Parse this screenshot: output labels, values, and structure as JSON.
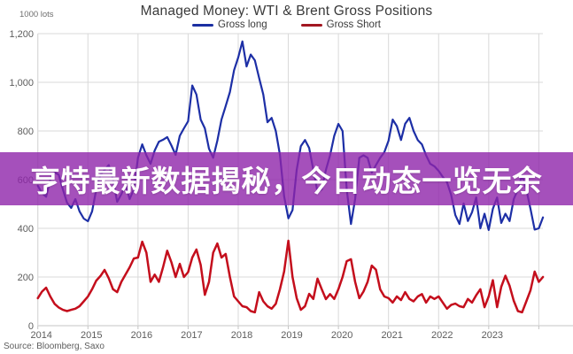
{
  "title": "Managed Money: WTI & Brent Gross Positions",
  "unit_label": "1000 lots",
  "source": "Source: Bloomberg, Saxo",
  "banner": {
    "text": "亨特最新数据揭秘，今日动态一览无余",
    "bg_color": "rgba(142,36,170,0.8)",
    "text_color": "#ffffff"
  },
  "legend": {
    "items": [
      {
        "label": "Gross long",
        "color": "#1b2fa2"
      },
      {
        "label": "Gross Short",
        "color": "#a21721"
      }
    ]
  },
  "colors": {
    "gross_long_line": "#1d2fa6",
    "gross_short_line": "#c40e1c",
    "gridline": "#d9d9d9",
    "axis": "#c4c4c4",
    "tick_label": "#5c5c5c"
  },
  "chart_data": {
    "type": "line",
    "title": "Managed Money: WTI & Brent Gross Positions",
    "unit": "1000 lots",
    "x_start_year": 2014,
    "points_per_year": 12,
    "x_tick_labels": [
      "2014",
      "2015",
      "2016",
      "2017",
      "2018",
      "2019",
      "2020",
      "2021",
      "2022",
      "2023"
    ],
    "x_gridline_years": [
      2014,
      2015,
      2016,
      2017,
      2018,
      2019,
      2020,
      2021,
      2022,
      2023,
      2024
    ],
    "y_ticks": [
      0,
      200,
      400,
      600,
      800,
      1000,
      1200
    ],
    "y_tick_labels": [
      "0",
      "200",
      "400",
      "600",
      "800",
      "1,000",
      "1,200"
    ],
    "ylim": [
      0,
      1200
    ],
    "grid": true,
    "legend_position": "top",
    "series": [
      {
        "name": "Gross long",
        "color": "#1d2fa6",
        "values": [
          575,
          545,
          530,
          600,
          630,
          620,
          560,
          505,
          484,
          520,
          470,
          440,
          429,
          470,
          560,
          620,
          640,
          660,
          600,
          509,
          540,
          580,
          520,
          560,
          690,
          745,
          700,
          665,
          720,
          756,
          764,
          775,
          740,
          702,
          780,
          811,
          840,
          987,
          950,
          847,
          811,
          727,
          690,
          760,
          847,
          902,
          960,
          1050,
          1102,
          1168,
          1065,
          1114,
          1090,
          1018,
          950,
          836,
          854,
          800,
          702,
          532,
          441,
          475,
          640,
          738,
          763,
          730,
          640,
          550,
          560,
          640,
          700,
          780,
          829,
          800,
          560,
          418,
          520,
          690,
          700,
          690,
          629,
          660,
          690,
          713,
          760,
          847,
          820,
          763,
          830,
          854,
          800,
          763,
          745,
          700,
          665,
          655,
          636,
          611,
          590,
          538,
          455,
          418,
          502,
          430,
          466,
          527,
          400,
          460,
          393,
          480,
          527,
          422,
          460,
          430,
          520,
          560,
          618,
          560,
          480,
          395,
          400,
          445
        ]
      },
      {
        "name": "Gross Short",
        "color": "#c40e1c",
        "values": [
          113,
          140,
          156,
          120,
          90,
          75,
          65,
          60,
          65,
          70,
          80,
          100,
          120,
          150,
          185,
          204,
          229,
          195,
          150,
          138,
          180,
          210,
          240,
          276,
          280,
          345,
          300,
          180,
          210,
          180,
          240,
          308,
          260,
          200,
          254,
          200,
          220,
          280,
          313,
          250,
          127,
          180,
          300,
          338,
          280,
          295,
          200,
          120,
          100,
          80,
          76,
          60,
          55,
          138,
          100,
          80,
          70,
          90,
          150,
          222,
          349,
          200,
          113,
          65,
          80,
          131,
          110,
          193,
          150,
          109,
          130,
          110,
          150,
          200,
          265,
          273,
          180,
          113,
          140,
          180,
          247,
          230,
          149,
          120,
          113,
          95,
          120,
          105,
          138,
          110,
          100,
          120,
          130,
          95,
          120,
          110,
          120,
          95,
          70,
          85,
          91,
          80,
          76,
          110,
          95,
          125,
          150,
          76,
          120,
          187,
          76,
          160,
          205,
          164,
          102,
          60,
          55,
          100,
          145,
          222,
          180,
          200
        ]
      }
    ]
  }
}
